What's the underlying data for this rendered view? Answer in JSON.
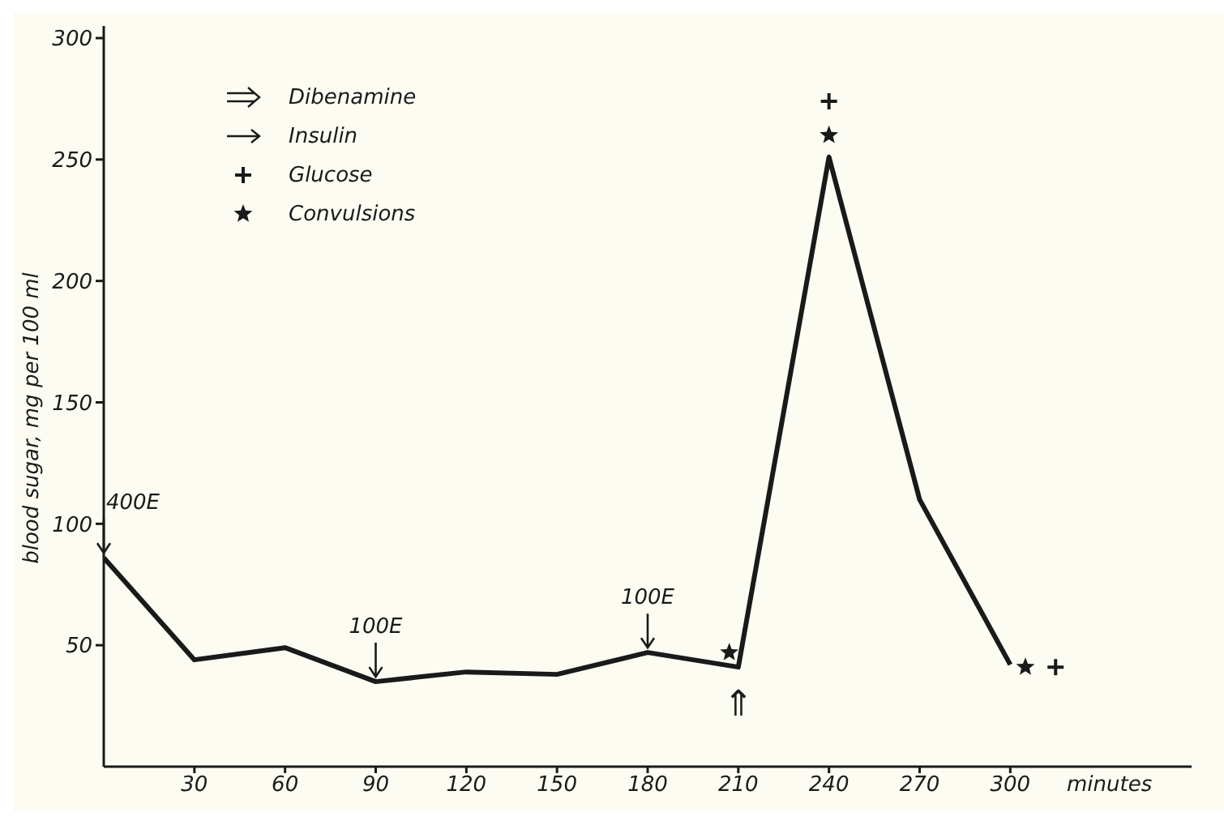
{
  "chart_data": {
    "type": "line",
    "ylabel": "blood sugar, mg per 100 ml",
    "xlabel": "minutes",
    "xlim": [
      0,
      360
    ],
    "xticks": [
      30,
      60,
      90,
      120,
      150,
      180,
      210,
      240,
      270,
      300
    ],
    "ylim": [
      0,
      305
    ],
    "yticks": [
      50,
      100,
      150,
      200,
      250,
      300
    ],
    "legend": "top left",
    "annotations": [
      "Dibenamine",
      "Insulin",
      {
        "text": "400E",
        "x": 0,
        "y": 86
      },
      {
        "text": "100E",
        "x": 90,
        "y": 35
      },
      {
        "text": "100E",
        "x": 180,
        "y": 47
      },
      {
        "text": "⇑",
        "x": 210,
        "y": 41
      }
    ],
    "series": [
      {
        "color": "#1a1a1a",
        "x": [
          0,
          30,
          60,
          90,
          120,
          150,
          180,
          210,
          240,
          270,
          300
        ],
        "values": [
          86,
          44,
          49,
          35,
          39,
          38,
          47,
          41,
          251,
          110,
          42
        ]
      },
      {
        "name": "Glucose",
        "type": "scatter",
        "marker": "cross",
        "color": "#1a1a1a",
        "x": [
          240,
          315
        ],
        "values": [
          274,
          41
        ]
      },
      {
        "name": "Convulsions",
        "type": "scatter",
        "marker": "star",
        "color": "#1a1a1a",
        "x": [
          207,
          240,
          305
        ],
        "values": [
          47,
          260,
          41
        ]
      }
    ]
  }
}
